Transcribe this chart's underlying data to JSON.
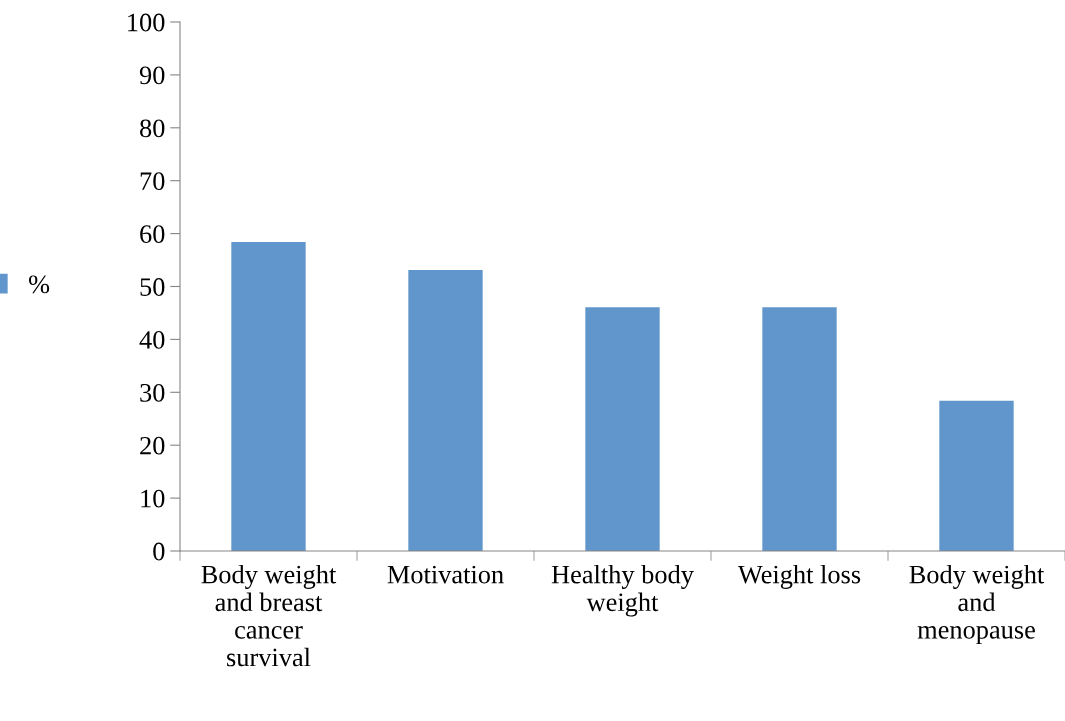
{
  "chart_data": {
    "type": "bar",
    "categories": [
      "Body weight and breast cancer survival",
      "Motivation",
      "Healthy body weight",
      "Weight loss",
      "Body weight and menopause"
    ],
    "series": [
      {
        "name": "%",
        "color": "#6096cb",
        "values": [
          58.4,
          53.1,
          46.1,
          46.1,
          28.4
        ]
      }
    ],
    "ylim": [
      0,
      100
    ],
    "yticks": [
      0,
      10,
      20,
      30,
      40,
      50,
      60,
      70,
      80,
      90,
      100
    ],
    "grid": false,
    "legend": "left"
  }
}
